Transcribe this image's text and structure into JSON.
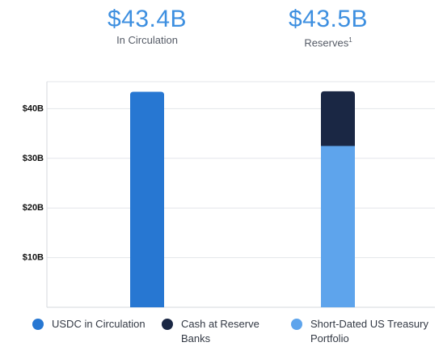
{
  "stats": [
    {
      "value": "$43.4B",
      "label": "In Circulation",
      "sup": ""
    },
    {
      "value": "$43.5B",
      "label": "Reserves",
      "sup": "1"
    }
  ],
  "chart_data": {
    "type": "bar",
    "stacked": true,
    "categories": [
      "In Circulation",
      "Reserves"
    ],
    "series": [
      {
        "name": "USDC in Circulation",
        "color": "#2777d2",
        "values": [
          43.4,
          0
        ]
      },
      {
        "name": "Short-Dated US Treasury Portfolio",
        "color": "#5ea4ec",
        "values": [
          0,
          32.5
        ]
      },
      {
        "name": "Cash at Reserve Banks",
        "color": "#1a2744",
        "values": [
          0,
          11.0
        ]
      }
    ],
    "yticks": [
      "$10B",
      "$20B",
      "$30B",
      "$40B"
    ],
    "ytick_values": [
      10,
      20,
      30,
      40
    ],
    "ylim": [
      0,
      50
    ],
    "grid": true,
    "legend_position": "bottom"
  },
  "legend": [
    {
      "label": "USDC in Circulation",
      "color": "#2777d2"
    },
    {
      "label": "Cash at Reserve Banks",
      "color": "#1a2744"
    },
    {
      "label": "Short-Dated US Treasury Portfolio",
      "color": "#5ea4ec"
    }
  ]
}
